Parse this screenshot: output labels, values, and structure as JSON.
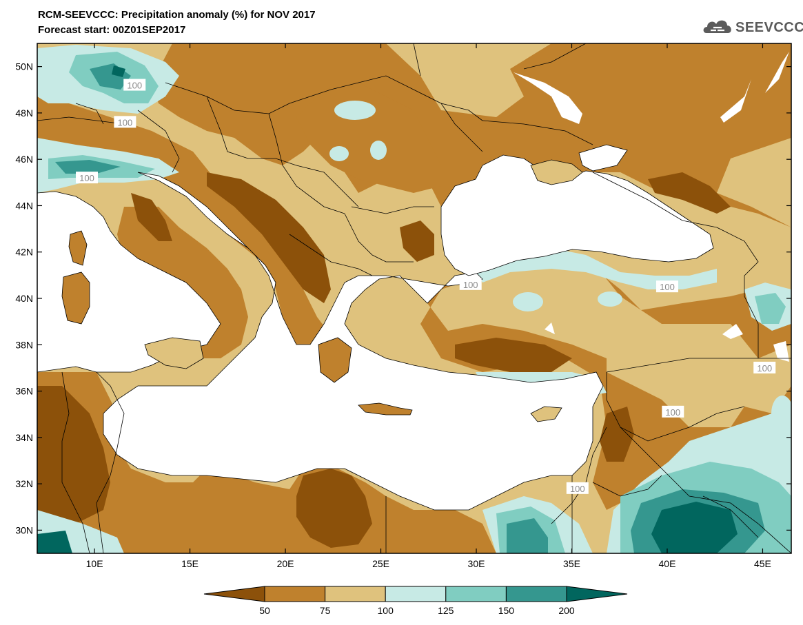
{
  "header": {
    "title": "RCM-SEEVCCC: Precipitation anomaly (%) for NOV 2017",
    "subtitle": "Forecast start: 00Z01SEP2017"
  },
  "logo": {
    "text": "SEEVCCC",
    "icon": "cloud-icon"
  },
  "map": {
    "lat_labels": [
      "50N",
      "48N",
      "46N",
      "44N",
      "42N",
      "40N",
      "38N",
      "36N",
      "34N",
      "32N",
      "30N"
    ],
    "lat_values": [
      50,
      48,
      46,
      44,
      42,
      40,
      38,
      36,
      34,
      32,
      30
    ],
    "lon_labels": [
      "10E",
      "15E",
      "20E",
      "25E",
      "30E",
      "35E",
      "40E",
      "45E"
    ],
    "lon_values": [
      10,
      15,
      20,
      25,
      30,
      35,
      40,
      45
    ],
    "lon_range": [
      7,
      46.5
    ],
    "lat_range": [
      29,
      51
    ],
    "contour_labels": [
      {
        "text": "100",
        "lon": 12.1,
        "lat": 49.2
      },
      {
        "text": "100",
        "lon": 11.6,
        "lat": 47.6
      },
      {
        "text": "100",
        "lon": 9.6,
        "lat": 45.2
      },
      {
        "text": "100",
        "lon": 29.7,
        "lat": 40.6
      },
      {
        "text": "100",
        "lon": 40.0,
        "lat": 40.5
      },
      {
        "text": "100",
        "lon": 40.3,
        "lat": 35.1
      },
      {
        "text": "100",
        "lon": 35.3,
        "lat": 31.8
      },
      {
        "text": "100",
        "lon": 45.1,
        "lat": 37.0
      }
    ]
  },
  "legend": {
    "ticks": [
      "50",
      "75",
      "100",
      "125",
      "150",
      "200"
    ],
    "colors": [
      "#8c510a",
      "#bf812d",
      "#dfc27d",
      "#c7eae5",
      "#80cdc1",
      "#35978f",
      "#01665e"
    ]
  }
}
